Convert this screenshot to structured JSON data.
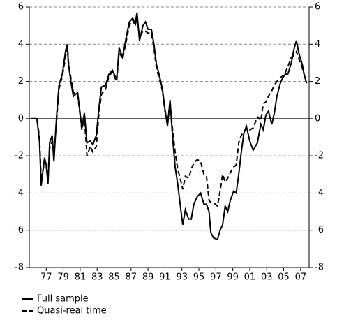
{
  "chart_data": {
    "type": "line",
    "x": [
      1975.2,
      1975.9,
      1976.2,
      1976.4,
      1976.8,
      1977.0,
      1977.2,
      1977.4,
      1977.7,
      1977.9,
      1978.2,
      1978.5,
      1978.9,
      1979.3,
      1979.5,
      1979.6,
      1979.9,
      1980.2,
      1980.7,
      1981.2,
      1981.5,
      1981.8,
      1982.2,
      1982.5,
      1982.9,
      1983.2,
      1983.5,
      1984.0,
      1984.4,
      1984.8,
      1985.3,
      1985.6,
      1986.0,
      1986.4,
      1986.8,
      1987.2,
      1987.5,
      1987.7,
      1988.0,
      1988.4,
      1988.7,
      1989.0,
      1989.4,
      1989.7,
      1990.0,
      1990.3,
      1990.7,
      1991.0,
      1991.3,
      1991.6,
      1991.9,
      1992.2,
      1992.5,
      1992.9,
      1993.1,
      1993.4,
      1993.8,
      1994.1,
      1994.4,
      1994.8,
      1995.2,
      1995.6,
      1995.9,
      1996.2,
      1996.4,
      1996.7,
      1997.2,
      1997.5,
      1997.8,
      1998.1,
      1998.4,
      1998.7,
      1999.1,
      1999.4,
      1999.7,
      2000.0,
      2000.3,
      2000.6,
      2001.0,
      2001.4,
      2001.9,
      2002.3,
      2002.6,
      2002.9,
      2003.2,
      2003.6,
      2003.9,
      2004.2,
      2004.6,
      2004.9,
      2005.2,
      2005.5,
      2005.9,
      2006.2,
      2006.5,
      2006.8,
      2007.2,
      2007.4,
      2007.7
    ],
    "series": [
      {
        "name": "Full sample",
        "color": "#000000",
        "dash": "solid",
        "values": [
          0,
          0,
          -1.2,
          -3.6,
          -2.1,
          -2.5,
          -3.5,
          -1.3,
          -0.9,
          -2.3,
          0,
          1.8,
          2.4,
          3.7,
          4.0,
          3.0,
          2.0,
          1.2,
          1.4,
          -0.5,
          0.3,
          -1.3,
          -1.2,
          -1.4,
          -0.9,
          0.5,
          1.7,
          1.8,
          2.4,
          2.6,
          2.1,
          3.8,
          3.3,
          4.3,
          5.2,
          5.4,
          5.1,
          5.7,
          4.2,
          5.0,
          5.2,
          4.8,
          4.8,
          4.0,
          2.9,
          2.4,
          1.6,
          0.5,
          -0.4,
          1.0,
          -1.0,
          -2.6,
          -3.5,
          -5.0,
          -5.7,
          -4.9,
          -5.4,
          -5.4,
          -4.6,
          -4.2,
          -4.0,
          -4.6,
          -4.6,
          -5.0,
          -6.1,
          -6.4,
          -6.5,
          -6.0,
          -5.7,
          -4.7,
          -5.0,
          -4.4,
          -3.9,
          -4.0,
          -3.0,
          -1.8,
          -0.8,
          -0.4,
          -1.2,
          -1.7,
          -1.3,
          -0.3,
          -0.6,
          0.2,
          0.4,
          -0.3,
          0.3,
          1.2,
          1.9,
          2.2,
          2.4,
          2.4,
          3.0,
          3.7,
          4.2,
          3.5,
          2.9,
          2.4,
          1.9
        ]
      },
      {
        "name": "Quasi-real time",
        "color": "#000000",
        "dash": "dashed",
        "values": [
          0,
          0,
          -1.0,
          -3.3,
          -2.3,
          -2.6,
          -3.2,
          -1.6,
          -1.2,
          -2.0,
          -0.2,
          1.6,
          2.3,
          3.4,
          3.8,
          3.1,
          2.2,
          1.4,
          1.3,
          -0.6,
          0.1,
          -2.0,
          -1.5,
          -1.8,
          -1.5,
          0.2,
          1.3,
          1.6,
          2.3,
          2.5,
          2.0,
          3.6,
          3.2,
          4.1,
          5.0,
          5.3,
          5.0,
          5.5,
          4.4,
          4.7,
          4.7,
          4.6,
          4.6,
          3.8,
          2.7,
          2.2,
          1.5,
          0.4,
          -0.2,
          0.8,
          -0.6,
          -1.8,
          -2.7,
          -3.4,
          -3.8,
          -3.1,
          -3.2,
          -2.7,
          -2.4,
          -2.2,
          -2.3,
          -3.0,
          -3.1,
          -4.4,
          -4.5,
          -4.5,
          -4.7,
          -3.9,
          -3.0,
          -3.4,
          -3.2,
          -2.9,
          -2.6,
          -2.5,
          -1.3,
          -0.9,
          -0.7,
          -0.5,
          -0.6,
          -0.5,
          0.1,
          -0.1,
          0.8,
          0.9,
          1.2,
          1.5,
          1.8,
          2.0,
          2.2,
          2.3,
          2.5,
          2.8,
          3.3,
          3.4,
          3.6,
          3.2,
          2.7,
          2.4,
          1.9
        ]
      }
    ],
    "xlim": [
      1975,
      2008
    ],
    "xticks": [
      {
        "value": 1977,
        "label": "77"
      },
      {
        "value": 1979,
        "label": "79"
      },
      {
        "value": 1981,
        "label": "81"
      },
      {
        "value": 1983,
        "label": "83"
      },
      {
        "value": 1985,
        "label": "85"
      },
      {
        "value": 1987,
        "label": "87"
      },
      {
        "value": 1989,
        "label": "89"
      },
      {
        "value": 1991,
        "label": "91"
      },
      {
        "value": 1993,
        "label": "93"
      },
      {
        "value": 1995,
        "label": "95"
      },
      {
        "value": 1997,
        "label": "97"
      },
      {
        "value": 1999,
        "label": "99"
      },
      {
        "value": 2001,
        "label": "01"
      },
      {
        "value": 2003,
        "label": "03"
      },
      {
        "value": 2005,
        "label": "05"
      },
      {
        "value": 2007,
        "label": "07"
      }
    ],
    "ylim": [
      -8,
      6
    ],
    "yticks": [
      -8,
      -6,
      -4,
      -2,
      0,
      2,
      4,
      6
    ],
    "y2lim": [
      -8,
      6
    ],
    "y2ticks": [
      -8,
      -6,
      -4,
      -2,
      0,
      2,
      4,
      6
    ],
    "grid": true,
    "legend": "bottom"
  }
}
